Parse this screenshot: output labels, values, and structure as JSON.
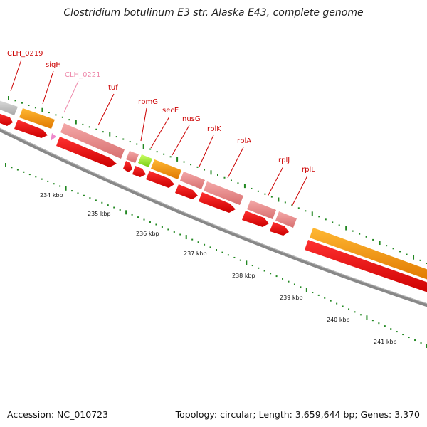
{
  "title": "Clostridium botulinum E3 str. Alaska E43, complete genome",
  "footer": {
    "accession": "Accession: NC_010723",
    "topology": "Topology: circular; Length: 3,659,644 bp; Genes: 3,370"
  },
  "colors": {
    "gene_label": "#cc0000",
    "gene_label_faded": "#ee88aa",
    "backbone": "#888888",
    "tick": "#228822",
    "orange": "#ff9900",
    "pink": "#e88c8c",
    "red": "#ee0000",
    "grey": "#c8c8c8",
    "green": "#99ee33",
    "magenta": "#ee88cc"
  },
  "genes": [
    {
      "name": "CLH_0219",
      "faded": false
    },
    {
      "name": "sigH",
      "faded": false
    },
    {
      "name": "CLH_0221",
      "faded": true
    },
    {
      "name": "tuf",
      "faded": false
    },
    {
      "name": "rpmG",
      "faded": false
    },
    {
      "name": "secE",
      "faded": false
    },
    {
      "name": "nusG",
      "faded": false
    },
    {
      "name": "rplK",
      "faded": false
    },
    {
      "name": "rplA",
      "faded": false
    },
    {
      "name": "rplJ",
      "faded": false
    },
    {
      "name": "rplL",
      "faded": false
    }
  ],
  "kbp_ticks": [
    "234 kbp",
    "235 kbp",
    "236 kbp",
    "237 kbp",
    "238 kbp",
    "239 kbp",
    "240 kbp",
    "241 kbp"
  ]
}
